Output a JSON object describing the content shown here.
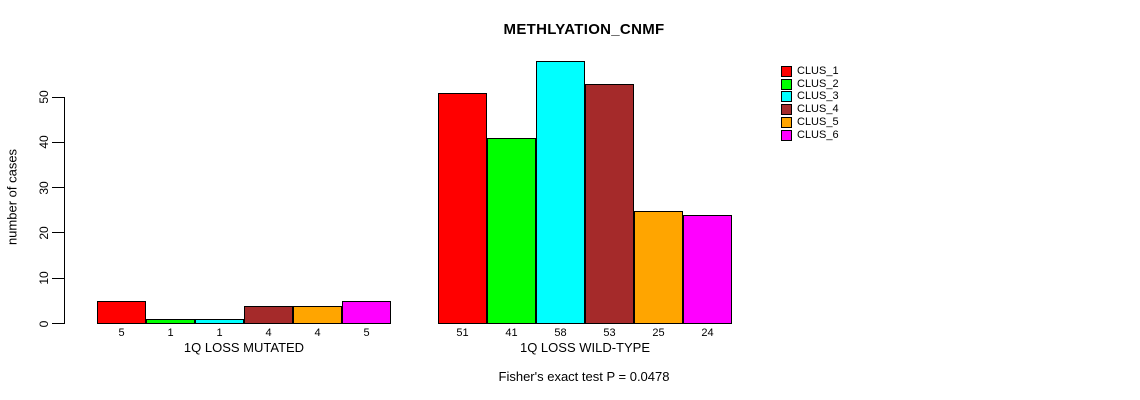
{
  "title": "METHLYATION_CNMF",
  "caption": "Fisher's exact test P = 0.0478",
  "y_axis": {
    "label": "number of cases"
  },
  "chart_data": {
    "type": "bar",
    "title": "METHLYATION_CNMF",
    "categories": [
      "1Q LOSS MUTATED",
      "1Q LOSS WILD-TYPE"
    ],
    "series": [
      {
        "name": "CLUS_1",
        "color": "#FF0000",
        "values": [
          5,
          51
        ]
      },
      {
        "name": "CLUS_2",
        "color": "#00FF00",
        "values": [
          1,
          41
        ]
      },
      {
        "name": "CLUS_3",
        "color": "#00FFFF",
        "values": [
          1,
          58
        ]
      },
      {
        "name": "CLUS_4",
        "color": "#A52A2A",
        "values": [
          4,
          53
        ]
      },
      {
        "name": "CLUS_5",
        "color": "#FFA500",
        "values": [
          4,
          25
        ]
      },
      {
        "name": "CLUS_6",
        "color": "#FF00FF",
        "values": [
          5,
          24
        ]
      }
    ],
    "xlabel": "",
    "ylabel": "number of cases",
    "ylim": [
      0,
      58
    ],
    "yticks": [
      0,
      10,
      20,
      30,
      40,
      50
    ],
    "grid": false,
    "legend_position": "right",
    "bar_value_labels": true,
    "annotation": "Fisher's exact test P = 0.0478"
  }
}
